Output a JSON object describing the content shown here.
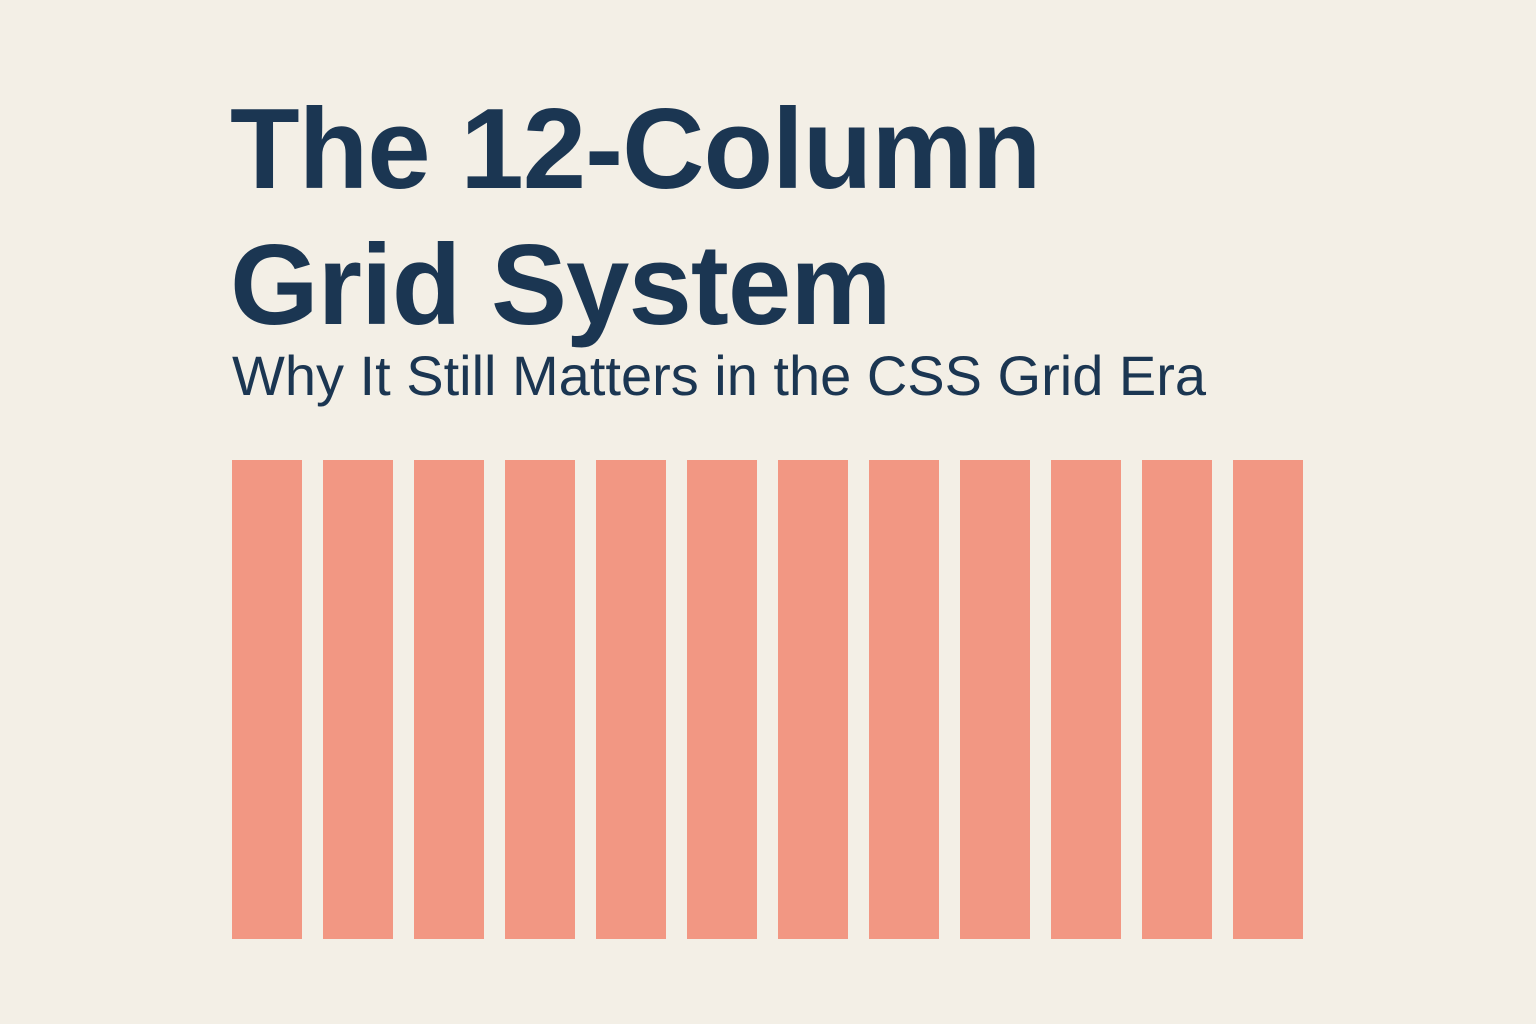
{
  "poster": {
    "title_line_1": "The 12-Column",
    "title_line_2": "Grid System",
    "subtitle": "Why It Still Matters in the CSS Grid Era"
  },
  "colors": {
    "background": "#f3efe6",
    "text": "#1b3652",
    "column": "#f29783"
  },
  "grid": {
    "column_count": 12
  }
}
